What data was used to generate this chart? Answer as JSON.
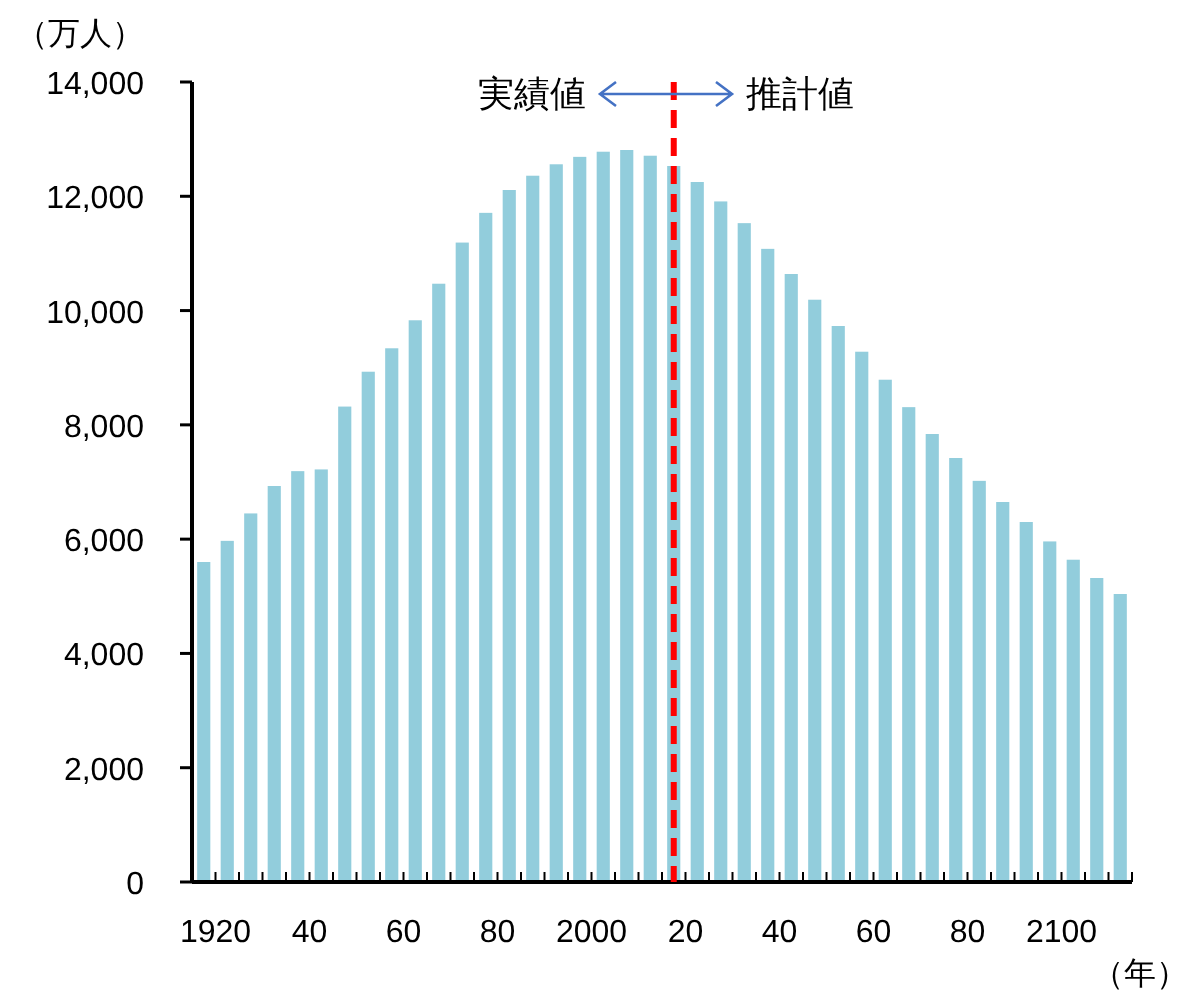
{
  "chart_data": {
    "type": "bar",
    "ylabel": "（万人）",
    "xlabel": "（年）",
    "categories": [
      "1920",
      null,
      null,
      null,
      "40",
      null,
      null,
      null,
      "60",
      null,
      null,
      null,
      "80",
      null,
      null,
      null,
      "2000",
      null,
      null,
      null,
      "20",
      null,
      null,
      null,
      "40",
      null,
      null,
      null,
      "60",
      null,
      null,
      null,
      "80",
      null,
      null,
      null,
      "2100",
      null,
      null,
      null
    ],
    "values": [
      5600,
      5970,
      6450,
      6930,
      7190,
      7220,
      8320,
      8930,
      9340,
      9830,
      10470,
      11190,
      11710,
      12110,
      12360,
      12560,
      12690,
      12780,
      12810,
      12710,
      12530,
      12250,
      11910,
      11530,
      11080,
      10640,
      10190,
      9730,
      9280,
      8790,
      8310,
      7840,
      7420,
      7020,
      6650,
      6300,
      5960,
      5640,
      5320,
      5040
    ],
    "color": "#92cddc",
    "ylim": [
      0,
      14000
    ],
    "yticks": [
      0,
      {
        "value": 2000,
        "label": "2,000"
      },
      {
        "value": 4000,
        "label": "4,000"
      },
      {
        "value": 6000,
        "label": "6,000"
      },
      {
        "value": 8000,
        "label": "8,000"
      },
      {
        "value": 10000,
        "label": "10,000"
      },
      {
        "value": 12000,
        "label": "12,000"
      },
      {
        "value": 14000,
        "label": "14,000"
      }
    ],
    "ref_lines": [
      {
        "axis": "x",
        "value": "20",
        "color": "#ff0000",
        "line_style": "dashed"
      }
    ],
    "annotations": [
      "実績値",
      "推計値"
    ],
    "grid": false
  }
}
